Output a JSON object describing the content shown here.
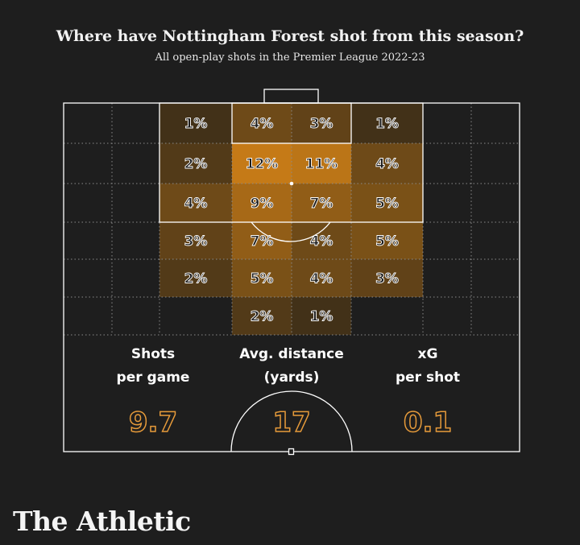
{
  "header": {
    "title": "Where have Nottingham Forest shot from this season?",
    "subtitle": "All open-play shots in the Premier League 2022-23"
  },
  "colors": {
    "background": "#1e1e1e",
    "line": "#ffffff",
    "grid": "#8a8a8a",
    "heat_high": "#c57a17",
    "heat_low": "#2a2418",
    "stat_value": "#e59a3a"
  },
  "chart_data": {
    "type": "heatmap",
    "title": "Where have Nottingham Forest shot from this season?",
    "subtitle": "All open-play shots in the Premier League 2022-23",
    "unit": "% of shots",
    "cells": [
      {
        "row": 0,
        "col": 2,
        "value": 1,
        "label": "1%"
      },
      {
        "row": 0,
        "col": 3,
        "value": 4,
        "label": "4%"
      },
      {
        "row": 0,
        "col": 4,
        "value": 3,
        "label": "3%"
      },
      {
        "row": 0,
        "col": 5,
        "value": 1,
        "label": "1%"
      },
      {
        "row": 1,
        "col": 2,
        "value": 2,
        "label": "2%"
      },
      {
        "row": 1,
        "col": 3,
        "value": 12,
        "label": "12%"
      },
      {
        "row": 1,
        "col": 4,
        "value": 11,
        "label": "11%"
      },
      {
        "row": 1,
        "col": 5,
        "value": 4,
        "label": "4%"
      },
      {
        "row": 2,
        "col": 2,
        "value": 4,
        "label": "4%"
      },
      {
        "row": 2,
        "col": 3,
        "value": 9,
        "label": "9%"
      },
      {
        "row": 2,
        "col": 4,
        "value": 7,
        "label": "7%"
      },
      {
        "row": 2,
        "col": 5,
        "value": 5,
        "label": "5%"
      },
      {
        "row": 3,
        "col": 2,
        "value": 3,
        "label": "3%"
      },
      {
        "row": 3,
        "col": 3,
        "value": 7,
        "label": "7%"
      },
      {
        "row": 3,
        "col": 4,
        "value": 4,
        "label": "4%"
      },
      {
        "row": 3,
        "col": 5,
        "value": 5,
        "label": "5%"
      },
      {
        "row": 4,
        "col": 2,
        "value": 2,
        "label": "2%"
      },
      {
        "row": 4,
        "col": 3,
        "value": 5,
        "label": "5%"
      },
      {
        "row": 4,
        "col": 4,
        "value": 4,
        "label": "4%"
      },
      {
        "row": 4,
        "col": 5,
        "value": 3,
        "label": "3%"
      },
      {
        "row": 5,
        "col": 3,
        "value": 2,
        "label": "2%"
      },
      {
        "row": 5,
        "col": 4,
        "value": 1,
        "label": "1%"
      }
    ],
    "stats": [
      {
        "label_line1": "Shots",
        "label_line2": "per game",
        "value": "9.7"
      },
      {
        "label_line1": "Avg. distance",
        "label_line2": "(yards)",
        "value": "17"
      },
      {
        "label_line1": "xG",
        "label_line2": "per shot",
        "value": "0.1"
      }
    ]
  },
  "brand": {
    "name": "The Athletic"
  }
}
